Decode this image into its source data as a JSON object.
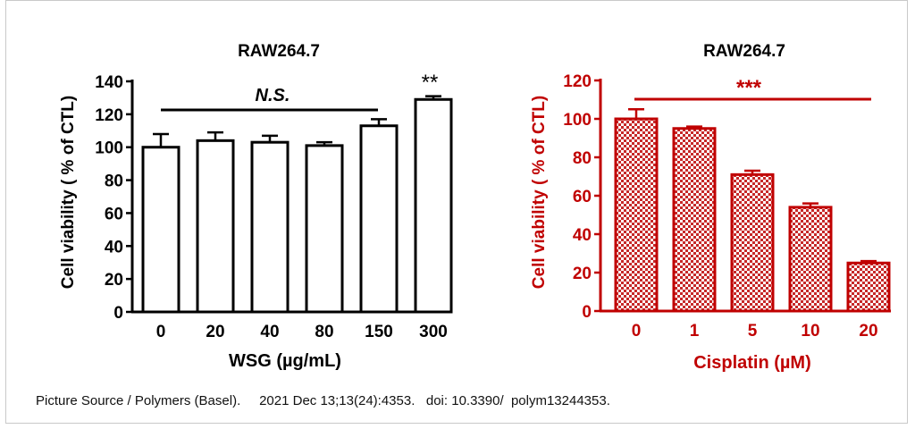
{
  "caption": "Picture Source / Polymers (Basel).     2021 Dec 13;13(24):4353.   doi: 10.3390/  polym13244353.",
  "chart_data": [
    {
      "type": "bar",
      "title": "RAW264.7",
      "xlabel": "WSG (µg/mL)",
      "ylabel": "Cell viability ( % of CTL)",
      "categories": [
        "0",
        "20",
        "40",
        "80",
        "150",
        "300"
      ],
      "values": [
        100,
        104,
        103,
        101,
        113,
        129
      ],
      "errors": [
        8,
        5,
        4,
        2,
        4,
        2
      ],
      "ylim": [
        0,
        140
      ],
      "yticks": [
        "0",
        "20",
        "40",
        "60",
        "80",
        "100",
        "120",
        "140"
      ],
      "annotations": [
        {
          "text": "N.S.",
          "bar": "0–150"
        },
        {
          "text": "**",
          "bar": "300"
        }
      ],
      "color": "#000000",
      "fill": "#ffffff"
    },
    {
      "type": "bar",
      "title": "RAW264.7",
      "xlabel": "Cisplatin (µM)",
      "ylabel": "Cell viability ( % of CTL)",
      "categories": [
        "0",
        "1",
        "5",
        "10",
        "20"
      ],
      "values": [
        100,
        95,
        71,
        54,
        25
      ],
      "errors": [
        5,
        1,
        2,
        2,
        1
      ],
      "ylim": [
        0,
        120
      ],
      "yticks": [
        "0",
        "20",
        "40",
        "60",
        "80",
        "100",
        "120"
      ],
      "annotations": [
        {
          "text": "***",
          "bar": "0–20"
        }
      ],
      "color": "#c00000",
      "fill": "checkered"
    }
  ]
}
